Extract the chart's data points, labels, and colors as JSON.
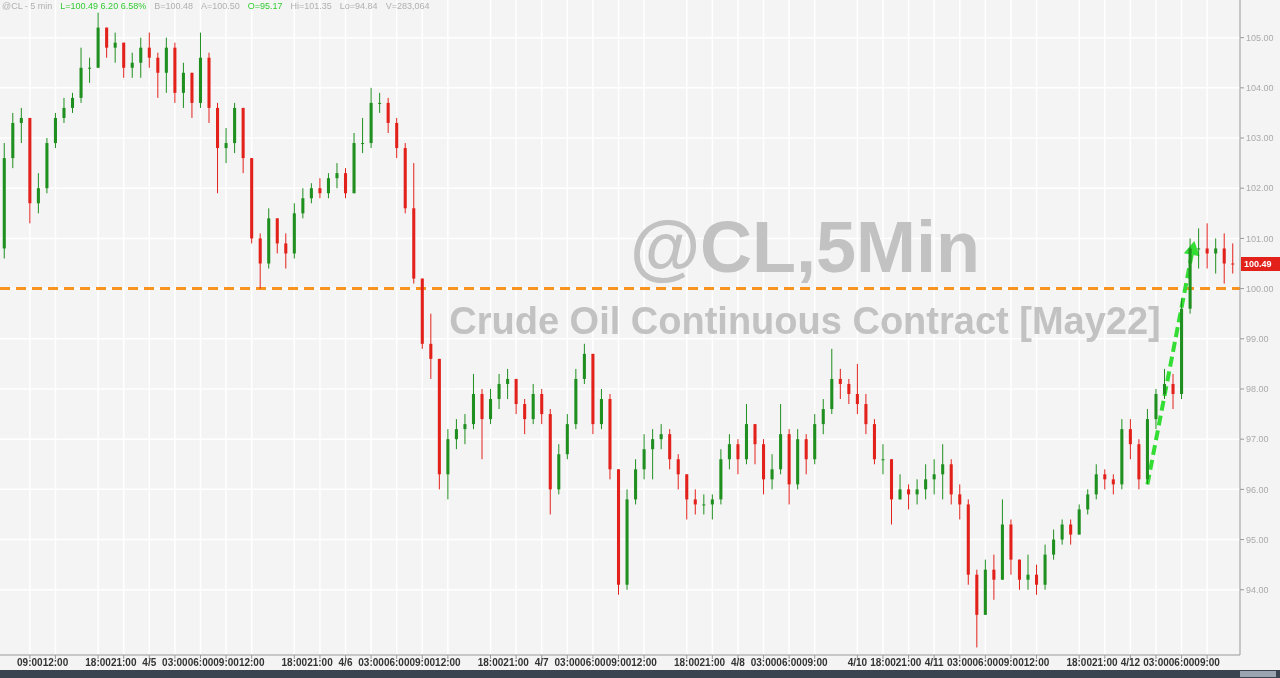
{
  "chart_data": {
    "type": "candlestick",
    "title": "@CL,5Min",
    "subtitle": "Crude Oil Continuous Contract [May22]",
    "annotations": [
      "@CL - 5 min",
      "L=100.49  6.20  6.58%",
      "B=100.48",
      "A=100.50",
      "O=95.17",
      "Hi=101.35",
      "Lo=94.84",
      "V=283,064",
      "100.49"
    ],
    "categories": [
      null,
      null,
      null,
      "09:00",
      null,
      null,
      "12:00",
      null,
      null,
      null,
      null,
      "18:00",
      null,
      null,
      "21:00",
      null,
      null,
      "4/5",
      null,
      null,
      "03:00",
      null,
      null,
      "06:00",
      null,
      null,
      "09:00",
      null,
      null,
      "12:00",
      null,
      null,
      null,
      null,
      "18:00",
      null,
      null,
      "21:00",
      null,
      null,
      "4/6",
      null,
      null,
      "03:00",
      null,
      null,
      "06:00",
      null,
      null,
      "09:00",
      null,
      null,
      "12:00",
      null,
      null,
      null,
      null,
      "18:00",
      null,
      null,
      "21:00",
      null,
      null,
      "4/7",
      null,
      null,
      "03:00",
      null,
      null,
      "06:00",
      null,
      null,
      "09:00",
      null,
      null,
      "12:00",
      null,
      null,
      null,
      null,
      "18:00",
      null,
      null,
      "21:00",
      null,
      null,
      "4/8",
      null,
      null,
      "03:00",
      null,
      null,
      "06:00",
      null,
      null,
      "09:00",
      null,
      null,
      null,
      null,
      "4/10",
      null,
      null,
      "18:00",
      null,
      null,
      "21:00",
      null,
      null,
      "4/11",
      null,
      null,
      "03:00",
      null,
      null,
      "06:00",
      null,
      null,
      "09:00",
      null,
      null,
      "12:00",
      null,
      null,
      null,
      null,
      "18:00",
      null,
      null,
      "21:00",
      null,
      null,
      "4/12",
      null,
      null,
      "03:00",
      null,
      null,
      "06:00",
      null,
      null,
      "09:00",
      null,
      null,
      null
    ],
    "ohlc": [
      [
        100.8,
        102.9,
        100.6,
        102.6
      ],
      [
        102.6,
        103.5,
        102.4,
        103.3
      ],
      [
        103.3,
        103.6,
        102.9,
        103.4
      ],
      [
        103.4,
        103.4,
        101.3,
        101.7
      ],
      [
        101.7,
        102.3,
        101.5,
        102.0
      ],
      [
        102.0,
        103.0,
        101.9,
        102.9
      ],
      [
        102.9,
        103.5,
        102.8,
        103.4
      ],
      [
        103.4,
        103.8,
        103.3,
        103.6
      ],
      [
        103.6,
        103.9,
        103.5,
        103.8
      ],
      [
        103.8,
        104.8,
        103.7,
        104.4
      ],
      [
        104.4,
        104.6,
        104.1,
        104.4
      ],
      [
        104.4,
        105.5,
        104.4,
        105.2
      ],
      [
        105.2,
        105.2,
        104.6,
        104.8
      ],
      [
        104.8,
        105.1,
        104.5,
        104.9
      ],
      [
        104.9,
        104.9,
        104.2,
        104.4
      ],
      [
        104.4,
        104.7,
        104.2,
        104.5
      ],
      [
        104.5,
        105.0,
        104.2,
        104.8
      ],
      [
        104.8,
        105.1,
        104.4,
        104.6
      ],
      [
        104.6,
        104.7,
        103.8,
        104.3
      ],
      [
        104.3,
        105.0,
        103.9,
        104.8
      ],
      [
        104.8,
        104.9,
        103.7,
        103.9
      ],
      [
        103.9,
        104.5,
        103.6,
        104.3
      ],
      [
        104.3,
        104.3,
        103.4,
        103.7
      ],
      [
        103.7,
        105.1,
        103.6,
        104.6
      ],
      [
        104.6,
        104.7,
        103.3,
        103.6
      ],
      [
        103.6,
        103.7,
        101.9,
        102.8
      ],
      [
        102.8,
        103.2,
        102.5,
        102.9
      ],
      [
        102.9,
        103.7,
        102.7,
        103.6
      ],
      [
        103.6,
        103.6,
        102.3,
        102.6
      ],
      [
        102.6,
        102.6,
        100.9,
        101.0
      ],
      [
        101.0,
        101.1,
        100.0,
        100.5
      ],
      [
        100.5,
        101.6,
        100.4,
        101.4
      ],
      [
        101.4,
        101.4,
        100.7,
        100.9
      ],
      [
        100.9,
        101.1,
        100.4,
        100.7
      ],
      [
        100.7,
        101.7,
        100.6,
        101.5
      ],
      [
        101.5,
        102.0,
        101.4,
        101.8
      ],
      [
        101.8,
        102.1,
        101.7,
        102.0
      ],
      [
        102.0,
        102.2,
        101.8,
        101.9
      ],
      [
        101.9,
        102.3,
        101.8,
        102.2
      ],
      [
        102.2,
        102.5,
        102.0,
        102.3
      ],
      [
        102.3,
        102.4,
        101.8,
        101.9
      ],
      [
        101.9,
        103.1,
        101.9,
        102.9
      ],
      [
        102.9,
        103.4,
        102.7,
        102.9
      ],
      [
        102.9,
        104.0,
        102.8,
        103.7
      ],
      [
        103.7,
        103.9,
        103.5,
        103.7
      ],
      [
        103.7,
        103.8,
        103.1,
        103.3
      ],
      [
        103.3,
        103.4,
        102.6,
        102.8
      ],
      [
        102.8,
        102.9,
        101.5,
        101.6
      ],
      [
        101.6,
        102.5,
        100.1,
        100.2
      ],
      [
        100.2,
        100.2,
        98.8,
        98.9
      ],
      [
        98.9,
        99.5,
        98.2,
        98.6
      ],
      [
        98.6,
        98.6,
        96.0,
        96.3
      ],
      [
        96.3,
        97.2,
        95.8,
        97.0
      ],
      [
        97.0,
        97.4,
        96.8,
        97.2
      ],
      [
        97.2,
        97.5,
        96.9,
        97.3
      ],
      [
        97.3,
        98.3,
        97.2,
        97.9
      ],
      [
        97.9,
        98.0,
        96.6,
        97.4
      ],
      [
        97.4,
        98.0,
        97.3,
        97.8
      ],
      [
        97.8,
        98.3,
        97.6,
        98.1
      ],
      [
        98.1,
        98.4,
        97.8,
        98.2
      ],
      [
        98.2,
        98.2,
        97.5,
        97.7
      ],
      [
        97.7,
        97.8,
        97.1,
        97.4
      ],
      [
        97.4,
        98.1,
        97.3,
        97.9
      ],
      [
        97.9,
        98.0,
        97.3,
        97.5
      ],
      [
        97.5,
        97.6,
        95.5,
        96.0
      ],
      [
        96.0,
        96.9,
        95.9,
        96.7
      ],
      [
        96.7,
        97.5,
        96.6,
        97.3
      ],
      [
        97.3,
        98.4,
        97.2,
        98.2
      ],
      [
        98.2,
        98.9,
        98.1,
        98.7
      ],
      [
        98.7,
        98.7,
        97.1,
        97.3
      ],
      [
        97.3,
        98.0,
        97.2,
        97.8
      ],
      [
        97.8,
        97.9,
        96.2,
        96.4
      ],
      [
        96.4,
        96.4,
        93.9,
        94.1
      ],
      [
        94.1,
        96.0,
        94.0,
        95.8
      ],
      [
        95.8,
        96.6,
        95.7,
        96.4
      ],
      [
        96.4,
        97.1,
        96.2,
        96.8
      ],
      [
        96.8,
        97.2,
        96.2,
        97.0
      ],
      [
        97.0,
        97.3,
        96.8,
        97.1
      ],
      [
        97.1,
        97.2,
        96.4,
        96.6
      ],
      [
        96.6,
        96.7,
        96.0,
        96.3
      ],
      [
        96.3,
        96.3,
        95.4,
        95.8
      ],
      [
        95.8,
        96.0,
        95.5,
        95.7
      ],
      [
        95.7,
        95.9,
        95.5,
        95.7
      ],
      [
        95.7,
        95.9,
        95.4,
        95.8
      ],
      [
        95.8,
        96.8,
        95.7,
        96.6
      ],
      [
        96.6,
        97.1,
        96.4,
        96.9
      ],
      [
        96.9,
        97.0,
        96.3,
        96.6
      ],
      [
        96.6,
        97.7,
        96.5,
        97.3
      ],
      [
        97.3,
        97.3,
        96.5,
        96.9
      ],
      [
        96.9,
        97.0,
        95.9,
        96.2
      ],
      [
        96.2,
        96.7,
        96.0,
        96.4
      ],
      [
        96.4,
        97.7,
        96.3,
        97.1
      ],
      [
        97.1,
        97.2,
        95.7,
        96.1
      ],
      [
        96.1,
        97.2,
        96.0,
        97.0
      ],
      [
        97.0,
        97.1,
        96.3,
        96.6
      ],
      [
        96.6,
        97.5,
        96.5,
        97.3
      ],
      [
        97.3,
        97.8,
        97.1,
        97.6
      ],
      [
        97.6,
        98.8,
        97.5,
        98.2
      ],
      [
        98.2,
        98.4,
        97.8,
        98.1
      ],
      [
        98.1,
        98.2,
        97.7,
        97.9
      ],
      [
        97.9,
        98.5,
        97.5,
        97.7
      ],
      [
        97.7,
        97.9,
        97.1,
        97.3
      ],
      [
        97.3,
        97.4,
        96.5,
        96.6
      ],
      [
        96.6,
        96.9,
        96.3,
        96.6
      ],
      [
        96.6,
        96.6,
        95.3,
        95.8
      ],
      [
        95.8,
        96.3,
        95.8,
        96.0
      ],
      [
        96.0,
        96.1,
        95.6,
        95.9
      ],
      [
        95.9,
        96.2,
        95.7,
        96.0
      ],
      [
        96.0,
        96.5,
        95.8,
        96.2
      ],
      [
        96.2,
        96.6,
        95.9,
        96.3
      ],
      [
        96.3,
        96.9,
        95.8,
        96.5
      ],
      [
        96.5,
        96.6,
        95.7,
        95.9
      ],
      [
        95.9,
        96.1,
        95.4,
        95.7
      ],
      [
        95.7,
        95.8,
        94.1,
        94.3
      ],
      [
        94.3,
        94.4,
        92.85,
        93.5
      ],
      [
        93.5,
        94.6,
        93.5,
        94.4
      ],
      [
        94.4,
        94.7,
        93.8,
        94.2
      ],
      [
        94.2,
        95.8,
        94.2,
        95.3
      ],
      [
        95.3,
        95.4,
        94.3,
        94.6
      ],
      [
        94.6,
        94.6,
        94.0,
        94.2
      ],
      [
        94.2,
        94.7,
        94.0,
        94.3
      ],
      [
        94.3,
        94.5,
        93.9,
        94.1
      ],
      [
        94.1,
        94.9,
        94.0,
        94.7
      ],
      [
        94.7,
        95.2,
        94.6,
        95.0
      ],
      [
        95.0,
        95.4,
        94.9,
        95.3
      ],
      [
        95.3,
        95.4,
        94.9,
        95.1
      ],
      [
        95.1,
        95.7,
        95.1,
        95.6
      ],
      [
        95.6,
        96.0,
        95.5,
        95.9
      ],
      [
        95.9,
        96.5,
        95.8,
        96.3
      ],
      [
        96.3,
        96.4,
        96.0,
        96.2
      ],
      [
        96.2,
        96.3,
        95.9,
        96.1
      ],
      [
        96.1,
        97.4,
        96.0,
        97.2
      ],
      [
        97.2,
        97.4,
        96.6,
        96.9
      ],
      [
        96.9,
        97.0,
        96.0,
        96.2
      ],
      [
        96.2,
        97.6,
        96.1,
        97.4
      ],
      [
        97.4,
        98.0,
        97.2,
        97.9
      ],
      [
        97.9,
        98.4,
        97.8,
        98.1
      ],
      [
        98.1,
        98.3,
        97.6,
        97.9
      ],
      [
        97.9,
        99.8,
        97.8,
        99.6
      ],
      [
        99.6,
        101.0,
        99.5,
        100.8
      ],
      [
        100.8,
        101.2,
        100.4,
        100.8
      ],
      [
        100.8,
        101.3,
        100.4,
        100.7
      ],
      [
        100.7,
        101.0,
        100.3,
        100.8
      ],
      [
        100.8,
        101.1,
        100.1,
        100.5
      ],
      [
        100.5,
        100.9,
        100.3,
        100.49
      ]
    ],
    "ylim": [
      92.7,
      105.75
    ],
    "yticks": [
      {
        "value": 94,
        "label": "94.00"
      },
      {
        "value": 95,
        "label": "95.00"
      },
      {
        "value": 96,
        "label": "96.00"
      },
      {
        "value": 97,
        "label": "97.00"
      },
      {
        "value": 98,
        "label": "98.00"
      },
      {
        "value": 99,
        "label": "99.00"
      },
      {
        "value": 100,
        "label": "100.00"
      },
      {
        "value": 101,
        "label": "101.00"
      },
      {
        "value": 102,
        "label": "102.00"
      },
      {
        "value": 103,
        "label": "103.00"
      },
      {
        "value": 104,
        "label": "104.00"
      },
      {
        "value": 105,
        "label": "105.00"
      }
    ],
    "ref_lines": [
      {
        "axis": "y",
        "value": 100,
        "color": "#f7931e",
        "line_style": "dashed"
      }
    ],
    "grid": true
  }
}
